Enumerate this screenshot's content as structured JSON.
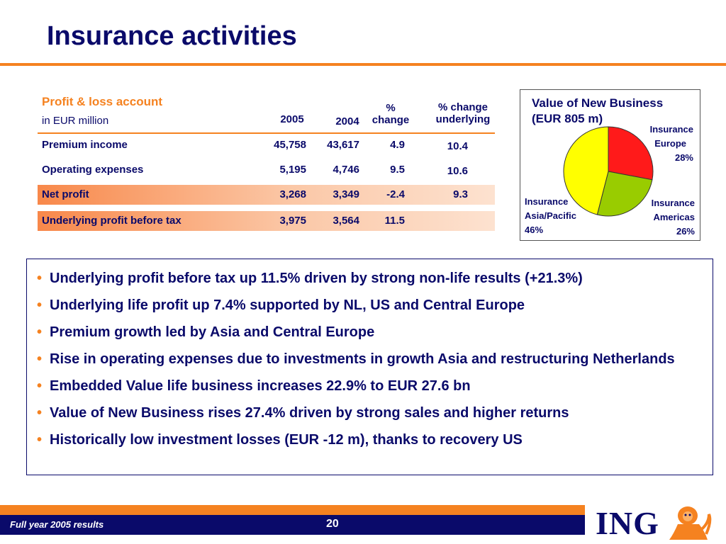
{
  "slide": {
    "title": "Insurance activities"
  },
  "pl": {
    "heading": "Profit & loss account",
    "subheading": "in EUR million",
    "columns": {
      "y2005": "2005",
      "y2004": "2004",
      "pct_line1": "%",
      "pct_line2": "change",
      "und_line1": "% change",
      "und_line2": "underlying"
    },
    "rows": [
      {
        "label": "Premium income",
        "v2005": "45,758",
        "v2004": "43,617",
        "pct": "4.9",
        "und": "10.4"
      },
      {
        "label": "Operating expenses",
        "v2005": "5,195",
        "v2004": "4,746",
        "pct": "9.5",
        "und": "10.6"
      },
      {
        "label": "Net profit",
        "v2005": "3,268",
        "v2004": "3,349",
        "pct": "-2.4",
        "und": "9.3"
      },
      {
        "label": "Underlying profit before tax",
        "v2005": "3,975",
        "v2004": "3,564",
        "pct": "11.5",
        "und": ""
      }
    ]
  },
  "vnb": {
    "title_line1": "Value of New Business",
    "title_line2": "(EUR 805 m)",
    "labels": {
      "europe_line1": "Insurance",
      "europe_line2": "Europe",
      "europe_pct": "28%",
      "americas_line1": "Insurance",
      "americas_line2": "Americas",
      "americas_pct": "26%",
      "asia_line1": "Insurance",
      "asia_line2": "Asia/Pacific",
      "asia_pct": "46%"
    },
    "colors": {
      "europe": "#ff1a1a",
      "americas": "#99cc00",
      "asia": "#ffff00"
    }
  },
  "chart_data": {
    "type": "pie",
    "title": "Value of New Business (EUR 805 m)",
    "categories": [
      "Insurance Europe",
      "Insurance Americas",
      "Insurance Asia/Pacific"
    ],
    "values": [
      28,
      26,
      46
    ]
  },
  "bullets": [
    "Underlying profit before tax up 11.5% driven by strong non-life results (+21.3%)",
    "Underlying life profit up 7.4% supported by NL, US and Central Europe",
    "Premium growth led by Asia and Central Europe",
    "Rise in operating expenses due to investments in growth Asia and restructuring Netherlands",
    "Embedded Value life business increases 22.9% to EUR 27.6 bn",
    "Value of New Business rises 27.4% driven by strong sales and higher returns",
    "Historically low investment losses (EUR -12 m), thanks to recovery US"
  ],
  "footer": {
    "left": "Full year 2005 results",
    "page": "20",
    "logo": "ING"
  },
  "bullet_glyph": "•"
}
